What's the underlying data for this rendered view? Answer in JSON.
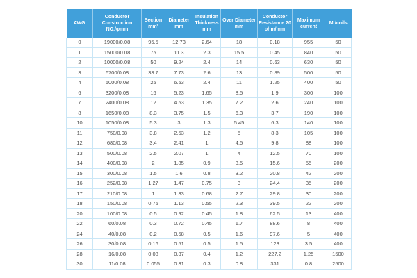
{
  "colors": {
    "header_bg": "#41a0da",
    "header_text": "#ffffff",
    "body_text": "#4d4d4d",
    "body_border": "#c9e6f6",
    "page_bg": "#ffffff"
  },
  "table": {
    "columns": [
      {
        "key": "awg",
        "label": "AWG"
      },
      {
        "key": "conductor-construction",
        "label": "Conductor\nConstruction\nNO./φmm"
      },
      {
        "key": "section",
        "label": "Section\nmm²"
      },
      {
        "key": "diameter",
        "label": "Diameter\nmm"
      },
      {
        "key": "insulation-thickness",
        "label": "Insulation\nThickness\nmm"
      },
      {
        "key": "over-diameter",
        "label": "Over Diameter\nmm"
      },
      {
        "key": "conductor-resistance",
        "label": "Conductor\nResistance 20\nohm/mm"
      },
      {
        "key": "maximum-current",
        "label": "Maximum\ncurrent"
      },
      {
        "key": "mt-coils",
        "label": "Mt/coils"
      }
    ],
    "rows": [
      [
        "0",
        "19000/0.08",
        "95.5",
        "12.73",
        "2.64",
        "18",
        "0.18",
        "955",
        "50"
      ],
      [
        "1",
        "15000/0.08",
        "75",
        "11.3",
        "2.3",
        "15.5",
        "0.45",
        "840",
        "50"
      ],
      [
        "2",
        "10000/0.08",
        "50",
        "9.24",
        "2.4",
        "14",
        "0.63",
        "630",
        "50"
      ],
      [
        "3",
        "6700/0.08",
        "33.7",
        "7.73",
        "2.6",
        "13",
        "0.89",
        "500",
        "50"
      ],
      [
        "4",
        "5000/0.08",
        "25",
        "6.53",
        "2.4",
        "11",
        "1.25",
        "400",
        "50"
      ],
      [
        "6",
        "3200/0.08",
        "16",
        "5.23",
        "1.65",
        "8.5",
        "1.9",
        "300",
        "100"
      ],
      [
        "7",
        "2400/0.08",
        "12",
        "4.53",
        "1.35",
        "7.2",
        "2.6",
        "240",
        "100"
      ],
      [
        "8",
        "1650/0.08",
        "8.3",
        "3.75",
        "1.5",
        "6.3",
        "3.7",
        "190",
        "100"
      ],
      [
        "10",
        "1050/0.08",
        "5.3",
        "3",
        "1.3",
        "5.45",
        "6.3",
        "140",
        "100"
      ],
      [
        "11",
        "750/0.08",
        "3.8",
        "2.53",
        "1.2",
        "5",
        "8.3",
        "105",
        "100"
      ],
      [
        "12",
        "680/0.08",
        "3.4",
        "2.41",
        "1",
        "4.5",
        "9.8",
        "88",
        "100"
      ],
      [
        "13",
        "500/0.08",
        "2.5",
        "2.07",
        "1",
        "4",
        "12.5",
        "70",
        "100"
      ],
      [
        "14",
        "400/0.08",
        "2",
        "1.85",
        "0.9",
        "3.5",
        "15.6",
        "55",
        "200"
      ],
      [
        "15",
        "300/0.08",
        "1.5",
        "1.6",
        "0.8",
        "3.2",
        "20.8",
        "42",
        "200"
      ],
      [
        "16",
        "252/0.08",
        "1.27",
        "1.47",
        "0.75",
        "3",
        "24.4",
        "35",
        "200"
      ],
      [
        "17",
        "210/0.08",
        "1",
        "1.33",
        "0.68",
        "2.7",
        "29.8",
        "30",
        "200"
      ],
      [
        "18",
        "150/0.08",
        "0.75",
        "1.13",
        "0.55",
        "2.3",
        "39.5",
        "22",
        "200"
      ],
      [
        "20",
        "100/0.08",
        "0.5",
        "0.92",
        "0.45",
        "1.8",
        "62.5",
        "13",
        "400"
      ],
      [
        "22",
        "60/0.08",
        "0.3",
        "0.72",
        "0.45",
        "1.7",
        "88.6",
        "8",
        "400"
      ],
      [
        "24",
        "40/0.08",
        "0.2",
        "0.58",
        "0.5",
        "1.6",
        "97.6",
        "5",
        "400"
      ],
      [
        "26",
        "30/0.08",
        "0.16",
        "0.51",
        "0.5",
        "1.5",
        "123",
        "3.5",
        "400"
      ],
      [
        "28",
        "16/0.08",
        "0.08",
        "0.37",
        "0.4",
        "1.2",
        "227.2",
        "1.25",
        "1500"
      ],
      [
        "30",
        "11/0.08",
        "0.055",
        "0.31",
        "0.3",
        "0.8",
        "331",
        "0.8",
        "2500"
      ]
    ]
  }
}
